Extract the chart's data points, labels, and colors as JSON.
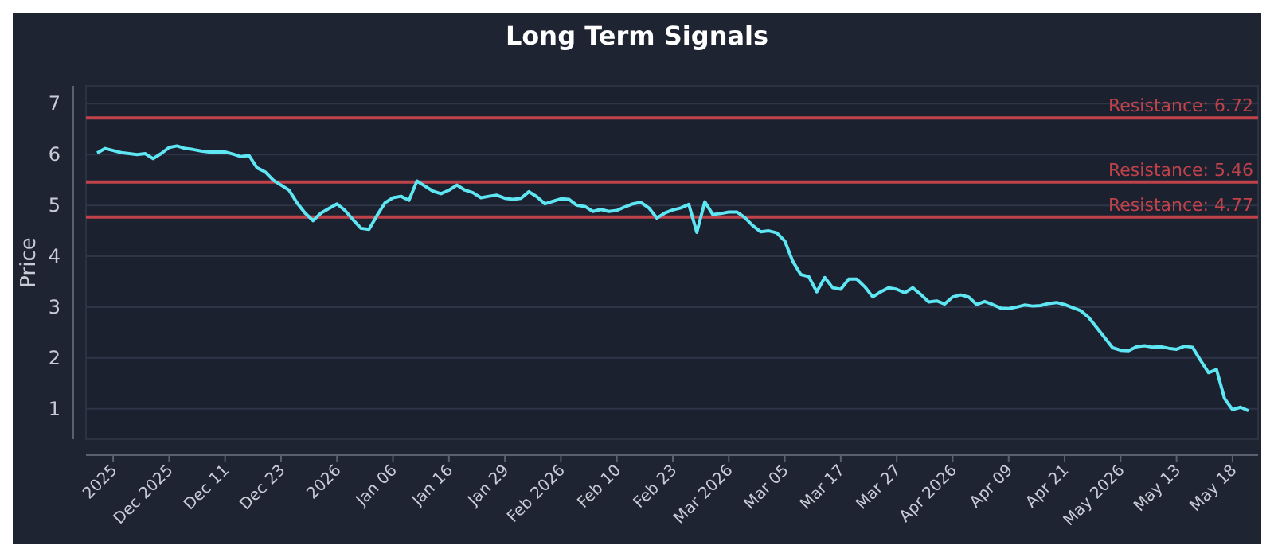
{
  "chart_data": {
    "type": "line",
    "title": "Long Term Signals",
    "ylabel": "Price",
    "categories": [
      null,
      null,
      "2025",
      null,
      null,
      null,
      null,
      null,
      null,
      "Dec 2025",
      null,
      null,
      null,
      null,
      null,
      null,
      "Dec 11",
      null,
      null,
      null,
      null,
      null,
      null,
      "Dec 23",
      null,
      null,
      null,
      null,
      null,
      null,
      "2026",
      null,
      null,
      null,
      null,
      null,
      null,
      "Jan 06",
      null,
      null,
      null,
      null,
      null,
      null,
      "Jan 16",
      null,
      null,
      null,
      null,
      null,
      null,
      "Jan 29",
      null,
      null,
      null,
      null,
      null,
      null,
      "Feb 2026",
      null,
      null,
      null,
      null,
      null,
      null,
      "Feb 10",
      null,
      null,
      null,
      null,
      null,
      null,
      "Feb 23",
      null,
      null,
      null,
      null,
      null,
      null,
      "Mar 2026",
      null,
      null,
      null,
      null,
      null,
      null,
      "Mar 05",
      null,
      null,
      null,
      null,
      null,
      null,
      "Mar 17",
      null,
      null,
      null,
      null,
      null,
      null,
      "Mar 27",
      null,
      null,
      null,
      null,
      null,
      null,
      "Apr 2026",
      null,
      null,
      null,
      null,
      null,
      null,
      "Apr 09",
      null,
      null,
      null,
      null,
      null,
      null,
      "Apr 21",
      null,
      null,
      null,
      null,
      null,
      null,
      "May 2026",
      null,
      null,
      null,
      null,
      null,
      null,
      "May 13",
      null,
      null,
      null,
      null,
      null,
      null,
      "May 18",
      null,
      null
    ],
    "series": [
      {
        "color": "#5ee6f2",
        "values": [
          6.03,
          6.12,
          6.08,
          6.04,
          6.02,
          6.0,
          6.02,
          5.92,
          6.02,
          6.14,
          6.17,
          6.12,
          6.1,
          6.07,
          6.05,
          6.05,
          6.05,
          6.01,
          5.96,
          5.98,
          5.74,
          5.66,
          5.5,
          5.4,
          5.3,
          5.05,
          4.85,
          4.7,
          4.85,
          4.94,
          5.03,
          4.9,
          4.72,
          4.55,
          4.53,
          4.8,
          5.05,
          5.15,
          5.18,
          5.1,
          5.48,
          5.38,
          5.28,
          5.23,
          5.3,
          5.4,
          5.3,
          5.25,
          5.15,
          5.18,
          5.2,
          5.14,
          5.12,
          5.14,
          5.27,
          5.17,
          5.03,
          5.08,
          5.13,
          5.12,
          5.0,
          4.98,
          4.88,
          4.92,
          4.88,
          4.9,
          4.97,
          5.03,
          5.06,
          4.95,
          4.75,
          4.85,
          4.91,
          4.95,
          5.02,
          4.47,
          5.07,
          4.82,
          4.84,
          4.87,
          4.87,
          4.76,
          4.6,
          4.48,
          4.5,
          4.46,
          4.3,
          3.9,
          3.64,
          3.6,
          3.3,
          3.58,
          3.38,
          3.35,
          3.55,
          3.55,
          3.4,
          3.2,
          3.3,
          3.38,
          3.35,
          3.28,
          3.38,
          3.25,
          3.1,
          3.12,
          3.06,
          3.2,
          3.24,
          3.2,
          3.05,
          3.11,
          3.05,
          2.98,
          2.97,
          3.0,
          3.04,
          3.02,
          3.03,
          3.07,
          3.09,
          3.05,
          2.99,
          2.93,
          2.8,
          2.6,
          2.4,
          2.2,
          2.15,
          2.14,
          2.22,
          2.24,
          2.21,
          2.22,
          2.19,
          2.17,
          2.23,
          2.21,
          1.95,
          1.71,
          1.77,
          1.2,
          0.98,
          1.03,
          0.96
        ]
      }
    ],
    "ylim": [
      0.4,
      7.35
    ],
    "yticks": [
      1,
      2,
      3,
      4,
      5,
      6,
      7
    ],
    "grid": "y",
    "ref_lines": [
      {
        "axis": "y",
        "value": 6.72,
        "label": "Resistance: 6.72",
        "color": "#c0424a"
      },
      {
        "axis": "y",
        "value": 5.46,
        "label": "Resistance: 5.46",
        "color": "#c0424a"
      },
      {
        "axis": "y",
        "value": 4.77,
        "label": "Resistance: 4.77",
        "color": "#c0424a"
      }
    ]
  }
}
